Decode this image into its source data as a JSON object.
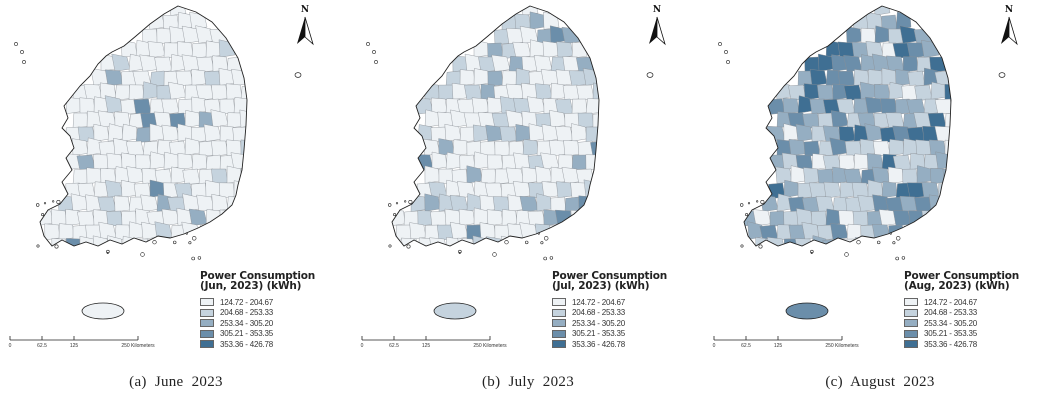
{
  "legend_classes": [
    "124.72 - 204.67",
    "204.68 - 253.33",
    "253.34 - 305.20",
    "305.21 - 353.35",
    "353.36 - 426.78"
  ],
  "legend_colors": [
    "#eef2f5",
    "#c5d3de",
    "#95aec2",
    "#6b8eaa",
    "#3f6f93"
  ],
  "scale_bar": {
    "ticks": [
      "0",
      "62.5",
      "125",
      "250 Kilometers"
    ]
  },
  "north_arrow": {
    "letter": "N",
    "icon": "north-arrow-icon"
  },
  "panels": [
    {
      "caption": "(a)  June  2023",
      "legend_title_1": "Power Consumption",
      "legend_title_2": "(Jun, 2023) (kWh)",
      "class_shares": [
        0.88,
        0.08,
        0.03,
        0.01,
        0.0
      ],
      "jeju_class": 0
    },
    {
      "caption": "(b)  July  2023",
      "legend_title_1": "Power Consumption",
      "legend_title_2": "(Jul, 2023) (kWh)",
      "class_shares": [
        0.68,
        0.22,
        0.08,
        0.02,
        0.0
      ],
      "jeju_class": 1
    },
    {
      "caption": "(c)  August  2023",
      "legend_title_1": "Power Consumption",
      "legend_title_2": "(Aug, 2023) (kWh)",
      "class_shares": [
        0.12,
        0.34,
        0.3,
        0.17,
        0.07
      ],
      "jeju_class": 3
    }
  ]
}
